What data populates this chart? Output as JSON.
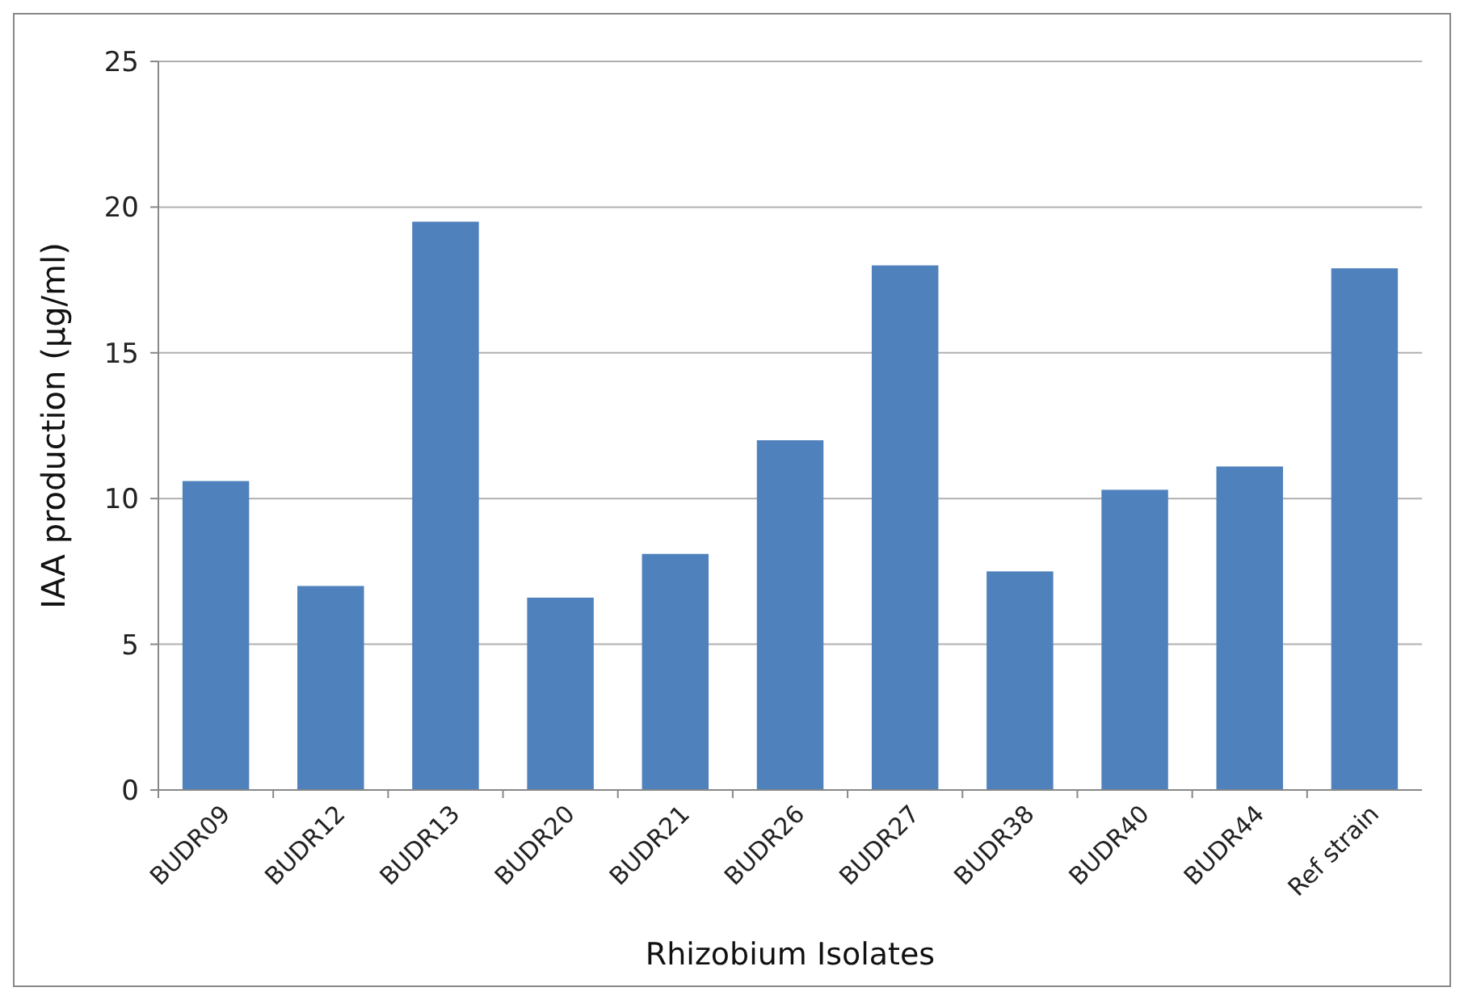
{
  "chart_data": {
    "type": "bar",
    "xlabel": "Rhizobium Isolates",
    "ylabel": "IAA production (µg/ml)",
    "categories": [
      "BUDR09",
      "BUDR12",
      "BUDR13",
      "BUDR20",
      "BUDR21",
      "BUDR26",
      "BUDR27",
      "BUDR38",
      "BUDR40",
      "BUDR44",
      "Ref strain"
    ],
    "values": [
      10.6,
      7.0,
      19.5,
      6.6,
      8.1,
      12.0,
      18.0,
      7.5,
      10.3,
      11.1,
      17.9
    ],
    "color": "#4f81bd",
    "ylim": [
      0,
      25
    ],
    "yticks": [
      0,
      5,
      10,
      15,
      20,
      25
    ],
    "grid": "y"
  }
}
